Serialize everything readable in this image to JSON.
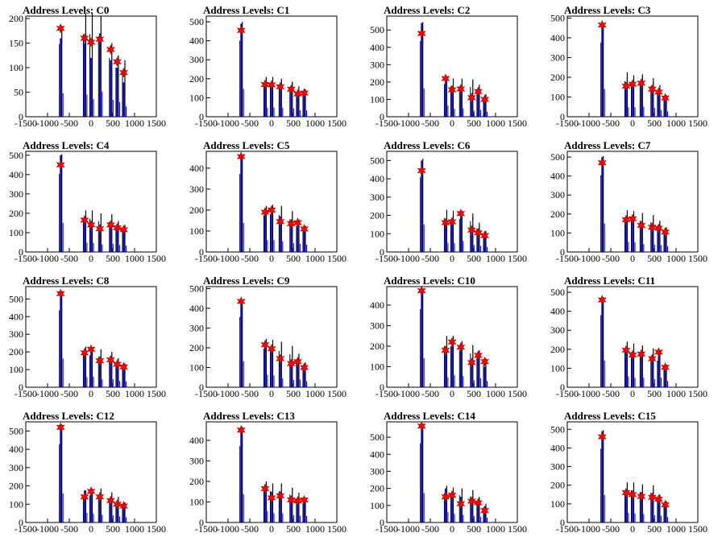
{
  "chart_data": [
    {
      "type": "bar",
      "title": "Address Levels: C0",
      "xlim": [
        -1500,
        1500
      ],
      "ylim": [
        0,
        205
      ],
      "yticks": [
        0,
        50,
        100,
        150,
        200
      ],
      "xticks": [
        -1500,
        -1000,
        -500,
        0,
        500,
        1000,
        1500
      ],
      "peaks_x": [
        -700,
        -150,
        0,
        200,
        450,
        600,
        750
      ],
      "blue": [
        160,
        150,
        120,
        170,
        115,
        100,
        70
      ],
      "black": [
        185,
        210,
        210,
        205,
        150,
        125,
        115
      ],
      "markers": [
        180,
        160,
        152,
        158,
        137,
        112,
        90
      ]
    },
    {
      "type": "bar",
      "title": "Address Levels: C1",
      "xlim": [
        -1500,
        1500
      ],
      "ylim": [
        0,
        530
      ],
      "yticks": [
        0,
        100,
        200,
        300,
        400,
        500
      ],
      "xticks": [
        -1500,
        -1000,
        -500,
        0,
        500,
        1000,
        1500
      ],
      "peaks_x": [
        -700,
        -150,
        0,
        200,
        450,
        600,
        750
      ],
      "blue": [
        490,
        160,
        160,
        160,
        145,
        115,
        110
      ],
      "black": [
        500,
        210,
        210,
        200,
        185,
        160,
        145
      ],
      "markers": [
        455,
        170,
        168,
        158,
        145,
        120,
        125
      ]
    },
    {
      "type": "bar",
      "title": "Address Levels: C2",
      "xlim": [
        -1500,
        1500
      ],
      "ylim": [
        0,
        580
      ],
      "yticks": [
        0,
        100,
        200,
        300,
        400,
        500
      ],
      "xticks": [
        -1500,
        -1000,
        -500,
        0,
        500,
        1000,
        1500
      ],
      "peaks_x": [
        -700,
        -150,
        0,
        200,
        450,
        600,
        750
      ],
      "blue": [
        540,
        215,
        150,
        160,
        115,
        130,
        95
      ],
      "black": [
        545,
        235,
        220,
        220,
        215,
        185,
        130
      ],
      "markers": [
        480,
        220,
        155,
        160,
        110,
        145,
        100
      ]
    },
    {
      "type": "bar",
      "title": "Address Levels: C3",
      "xlim": [
        -1500,
        1500
      ],
      "ylim": [
        0,
        510
      ],
      "yticks": [
        0,
        100,
        200,
        300,
        400,
        500
      ],
      "xticks": [
        -1500,
        -1000,
        -500,
        0,
        500,
        1000,
        1500
      ],
      "peaks_x": [
        -700,
        -150,
        0,
        200,
        450,
        600,
        750
      ],
      "blue": [
        470,
        160,
        160,
        170,
        150,
        115,
        90
      ],
      "black": [
        470,
        225,
        210,
        215,
        195,
        160,
        110
      ],
      "markers": [
        465,
        155,
        165,
        170,
        140,
        125,
        95
      ]
    },
    {
      "type": "bar",
      "title": "Address Levels: C4",
      "xlim": [
        -1500,
        1500
      ],
      "ylim": [
        0,
        520
      ],
      "yticks": [
        0,
        100,
        200,
        300,
        400,
        500
      ],
      "xticks": [
        -1500,
        -1000,
        -500,
        0,
        500,
        1000,
        1500
      ],
      "peaks_x": [
        -700,
        -150,
        0,
        200,
        450,
        600,
        750
      ],
      "blue": [
        500,
        160,
        155,
        130,
        140,
        120,
        110
      ],
      "black": [
        505,
        215,
        215,
        200,
        195,
        160,
        140
      ],
      "markers": [
        450,
        165,
        140,
        120,
        140,
        125,
        115
      ]
    },
    {
      "type": "bar",
      "title": "Address Levels: C5",
      "xlim": [
        -1500,
        1500
      ],
      "ylim": [
        0,
        480
      ],
      "yticks": [
        0,
        100,
        200,
        300,
        400
      ],
      "xticks": [
        -1500,
        -1000,
        -500,
        0,
        500,
        1000,
        1500
      ],
      "peaks_x": [
        -700,
        -150,
        0,
        200,
        450,
        600,
        750
      ],
      "blue": [
        460,
        190,
        190,
        170,
        140,
        130,
        115
      ],
      "black": [
        465,
        220,
        225,
        220,
        195,
        155,
        125
      ],
      "markers": [
        455,
        190,
        200,
        145,
        135,
        140,
        110
      ]
    },
    {
      "type": "bar",
      "title": "Address Levels: C6",
      "xlim": [
        -1500,
        1500
      ],
      "ylim": [
        0,
        550
      ],
      "yticks": [
        0,
        100,
        200,
        300,
        400,
        500
      ],
      "xticks": [
        -1500,
        -1000,
        -500,
        0,
        500,
        1000,
        1500
      ],
      "peaks_x": [
        -700,
        -150,
        0,
        200,
        450,
        600,
        750
      ],
      "blue": [
        500,
        160,
        160,
        200,
        125,
        110,
        90
      ],
      "black": [
        510,
        230,
        225,
        225,
        210,
        160,
        115
      ],
      "markers": [
        445,
        160,
        165,
        210,
        120,
        105,
        90
      ]
    },
    {
      "type": "bar",
      "title": "Address Levels: C7",
      "xlim": [
        -1500,
        1500
      ],
      "ylim": [
        0,
        530
      ],
      "yticks": [
        0,
        100,
        200,
        300,
        400,
        500
      ],
      "xticks": [
        -1500,
        -1000,
        -500,
        0,
        500,
        1000,
        1500
      ],
      "peaks_x": [
        -700,
        -150,
        0,
        200,
        450,
        600,
        750
      ],
      "blue": [
        500,
        175,
        170,
        140,
        130,
        120,
        100
      ],
      "black": [
        505,
        220,
        215,
        205,
        195,
        165,
        130
      ],
      "markers": [
        470,
        170,
        175,
        140,
        130,
        125,
        105
      ]
    },
    {
      "type": "bar",
      "title": "Address Levels: C8",
      "xlim": [
        -1500,
        1500
      ],
      "ylim": [
        0,
        570
      ],
      "yticks": [
        0,
        100,
        200,
        300,
        400,
        500
      ],
      "xticks": [
        -1500,
        -1000,
        -500,
        0,
        500,
        1000,
        1500
      ],
      "peaks_x": [
        -700,
        -150,
        0,
        200,
        450,
        600,
        750
      ],
      "blue": [
        540,
        190,
        200,
        150,
        150,
        120,
        110
      ],
      "black": [
        545,
        230,
        225,
        215,
        200,
        165,
        135
      ],
      "markers": [
        530,
        195,
        215,
        150,
        155,
        130,
        115
      ]
    },
    {
      "type": "bar",
      "title": "Address Levels: C9",
      "xlim": [
        -1500,
        1500
      ],
      "ylim": [
        0,
        510
      ],
      "yticks": [
        0,
        100,
        200,
        300,
        400,
        500
      ],
      "xticks": [
        -1500,
        -1000,
        -500,
        0,
        500,
        1000,
        1500
      ],
      "peaks_x": [
        -700,
        -150,
        0,
        200,
        450,
        600,
        750
      ],
      "blue": [
        440,
        210,
        200,
        150,
        125,
        130,
        100
      ],
      "black": [
        445,
        245,
        240,
        230,
        210,
        170,
        125
      ],
      "markers": [
        435,
        215,
        195,
        145,
        120,
        130,
        100
      ]
    },
    {
      "type": "bar",
      "title": "Address Levels: C10",
      "xlim": [
        -1500,
        1500
      ],
      "ylim": [
        0,
        490
      ],
      "yticks": [
        0,
        100,
        200,
        300,
        400
      ],
      "xticks": [
        -1500,
        -1000,
        -500,
        0,
        500,
        1000,
        1500
      ],
      "peaks_x": [
        -700,
        -150,
        0,
        200,
        450,
        600,
        750
      ],
      "blue": [
        470,
        160,
        200,
        180,
        110,
        145,
        100
      ],
      "black": [
        475,
        250,
        250,
        225,
        205,
        180,
        140
      ],
      "markers": [
        470,
        180,
        220,
        195,
        120,
        155,
        125
      ]
    },
    {
      "type": "bar",
      "title": "Address Levels: C11",
      "xlim": [
        -1500,
        1500
      ],
      "ylim": [
        0,
        530
      ],
      "yticks": [
        0,
        100,
        200,
        300,
        400,
        500
      ],
      "xticks": [
        -1500,
        -1000,
        -500,
        0,
        500,
        1000,
        1500
      ],
      "peaks_x": [
        -700,
        -150,
        0,
        200,
        450,
        600,
        750
      ],
      "blue": [
        470,
        190,
        165,
        165,
        140,
        170,
        110
      ],
      "black": [
        475,
        240,
        230,
        220,
        205,
        175,
        120
      ],
      "markers": [
        460,
        195,
        170,
        175,
        150,
        185,
        105
      ]
    },
    {
      "type": "bar",
      "title": "Address Levels: C12",
      "xlim": [
        -1500,
        1500
      ],
      "ylim": [
        0,
        550
      ],
      "yticks": [
        0,
        100,
        200,
        300,
        400,
        500
      ],
      "xticks": [
        -1500,
        -1000,
        -500,
        0,
        500,
        1000,
        1500
      ],
      "peaks_x": [
        -700,
        -150,
        0,
        200,
        450,
        600,
        750
      ],
      "blue": [
        530,
        175,
        160,
        140,
        130,
        110,
        95
      ],
      "black": [
        535,
        175,
        185,
        185,
        165,
        140,
        110
      ],
      "markers": [
        520,
        140,
        170,
        140,
        120,
        100,
        90
      ]
    },
    {
      "type": "bar",
      "title": "Address Levels: C13",
      "xlim": [
        -1500,
        1500
      ],
      "ylim": [
        0,
        490
      ],
      "yticks": [
        0,
        100,
        200,
        300,
        400
      ],
      "xticks": [
        -1500,
        -1000,
        -500,
        0,
        500,
        1000,
        1500
      ],
      "peaks_x": [
        -700,
        -150,
        0,
        200,
        450,
        600,
        750
      ],
      "blue": [
        460,
        185,
        150,
        150,
        120,
        110,
        105
      ],
      "black": [
        465,
        200,
        190,
        190,
        170,
        145,
        120
      ],
      "markers": [
        450,
        165,
        120,
        130,
        110,
        105,
        110
      ]
    },
    {
      "type": "bar",
      "title": "Address Levels: C14",
      "xlim": [
        -1500,
        1500
      ],
      "ylim": [
        0,
        590
      ],
      "yticks": [
        0,
        100,
        200,
        300,
        400,
        500
      ],
      "xticks": [
        -1500,
        -1000,
        -500,
        0,
        500,
        1000,
        1500
      ],
      "peaks_x": [
        -700,
        -150,
        0,
        200,
        450,
        600,
        750
      ],
      "blue": [
        575,
        200,
        170,
        150,
        130,
        110,
        95
      ],
      "black": [
        580,
        215,
        205,
        200,
        190,
        150,
        110
      ],
      "markers": [
        565,
        150,
        160,
        110,
        125,
        115,
        70
      ]
    },
    {
      "type": "bar",
      "title": "Address Levels: C15",
      "xlim": [
        -1500,
        1500
      ],
      "ylim": [
        0,
        540
      ],
      "yticks": [
        0,
        100,
        200,
        300,
        400,
        500
      ],
      "xticks": [
        -1500,
        -1000,
        -500,
        0,
        500,
        1000,
        1500
      ],
      "peaks_x": [
        -700,
        -150,
        0,
        200,
        450,
        600,
        750
      ],
      "blue": [
        490,
        170,
        160,
        150,
        130,
        120,
        95
      ],
      "black": [
        495,
        215,
        215,
        205,
        200,
        150,
        115
      ],
      "markers": [
        460,
        160,
        150,
        140,
        135,
        125,
        95
      ]
    }
  ],
  "colors": {
    "blue_series": "#0000ff",
    "black_series": "#000000",
    "marker": "#ff0000",
    "marker_outline": "#aa0000"
  }
}
